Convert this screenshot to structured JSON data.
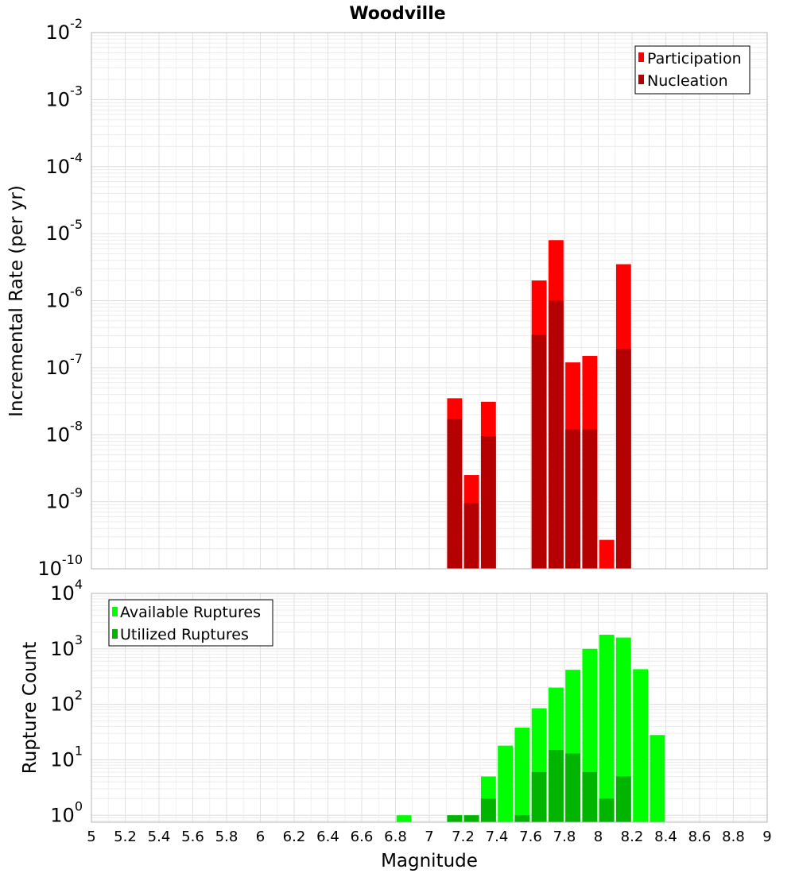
{
  "chart_data": [
    {
      "type": "bar",
      "title": "Woodville",
      "xlabel": "",
      "ylabel": "Incremental Rate (per yr)",
      "yscale": "log",
      "ylim": [
        1e-10,
        0.01
      ],
      "xlim": [
        5,
        9
      ],
      "bin_width": 0.1,
      "y_tick_exponents": [
        "-10",
        "-9",
        "-8",
        "-7",
        "-6",
        "-5",
        "-4",
        "-3",
        "-2"
      ],
      "y_tick_base": "10",
      "legend_position": "top-right",
      "series": [
        {
          "name": "Participation",
          "color": "#ff0000",
          "x": [
            7.15,
            7.25,
            7.35,
            7.65,
            7.75,
            7.85,
            7.95,
            8.05,
            8.15
          ],
          "values": [
            3.5e-08,
            2.5e-09,
            3.1e-08,
            2e-06,
            8e-06,
            1.2e-07,
            1.5e-07,
            2.7e-10,
            3.5e-06
          ]
        },
        {
          "name": "Nucleation",
          "color": "#b40000",
          "x": [
            7.15,
            7.25,
            7.35,
            7.65,
            7.75,
            7.85,
            7.95,
            8.15
          ],
          "values": [
            1.7e-08,
            9.5e-10,
            9.5e-09,
            3.1e-07,
            1e-06,
            1.2e-08,
            1.2e-08,
            1.9e-07
          ]
        }
      ]
    },
    {
      "type": "bar",
      "title": "",
      "xlabel": "Magnitude",
      "ylabel": "Rupture Count",
      "yscale": "log",
      "ylim": [
        0.75,
        10000
      ],
      "xlim": [
        5,
        9
      ],
      "bin_width": 0.1,
      "y_tick_exponents": [
        "0",
        "1",
        "2",
        "3",
        "4"
      ],
      "y_tick_base": "10",
      "x_ticks": [
        "5",
        "5.2",
        "5.4",
        "5.6",
        "5.8",
        "6",
        "6.2",
        "6.4",
        "6.6",
        "6.8",
        "7",
        "7.2",
        "7.4",
        "7.6",
        "7.8",
        "8",
        "8.2",
        "8.4",
        "8.6",
        "8.8",
        "9"
      ],
      "legend_position": "top-left",
      "series": [
        {
          "name": "Available Ruptures",
          "color": "#00ff00",
          "x": [
            6.85,
            7.15,
            7.25,
            7.35,
            7.45,
            7.55,
            7.65,
            7.75,
            7.85,
            7.95,
            8.05,
            8.15,
            8.25,
            8.35
          ],
          "values": [
            1,
            1,
            1,
            5,
            18,
            38,
            85,
            200,
            420,
            1000,
            1800,
            1600,
            430,
            28
          ]
        },
        {
          "name": "Utilized Ruptures",
          "color": "#00b400",
          "x": [
            7.15,
            7.25,
            7.35,
            7.55,
            7.65,
            7.75,
            7.85,
            7.95,
            8.05,
            8.15
          ],
          "values": [
            1,
            1,
            2,
            1,
            6,
            15,
            13,
            6,
            2,
            5
          ]
        }
      ]
    }
  ]
}
